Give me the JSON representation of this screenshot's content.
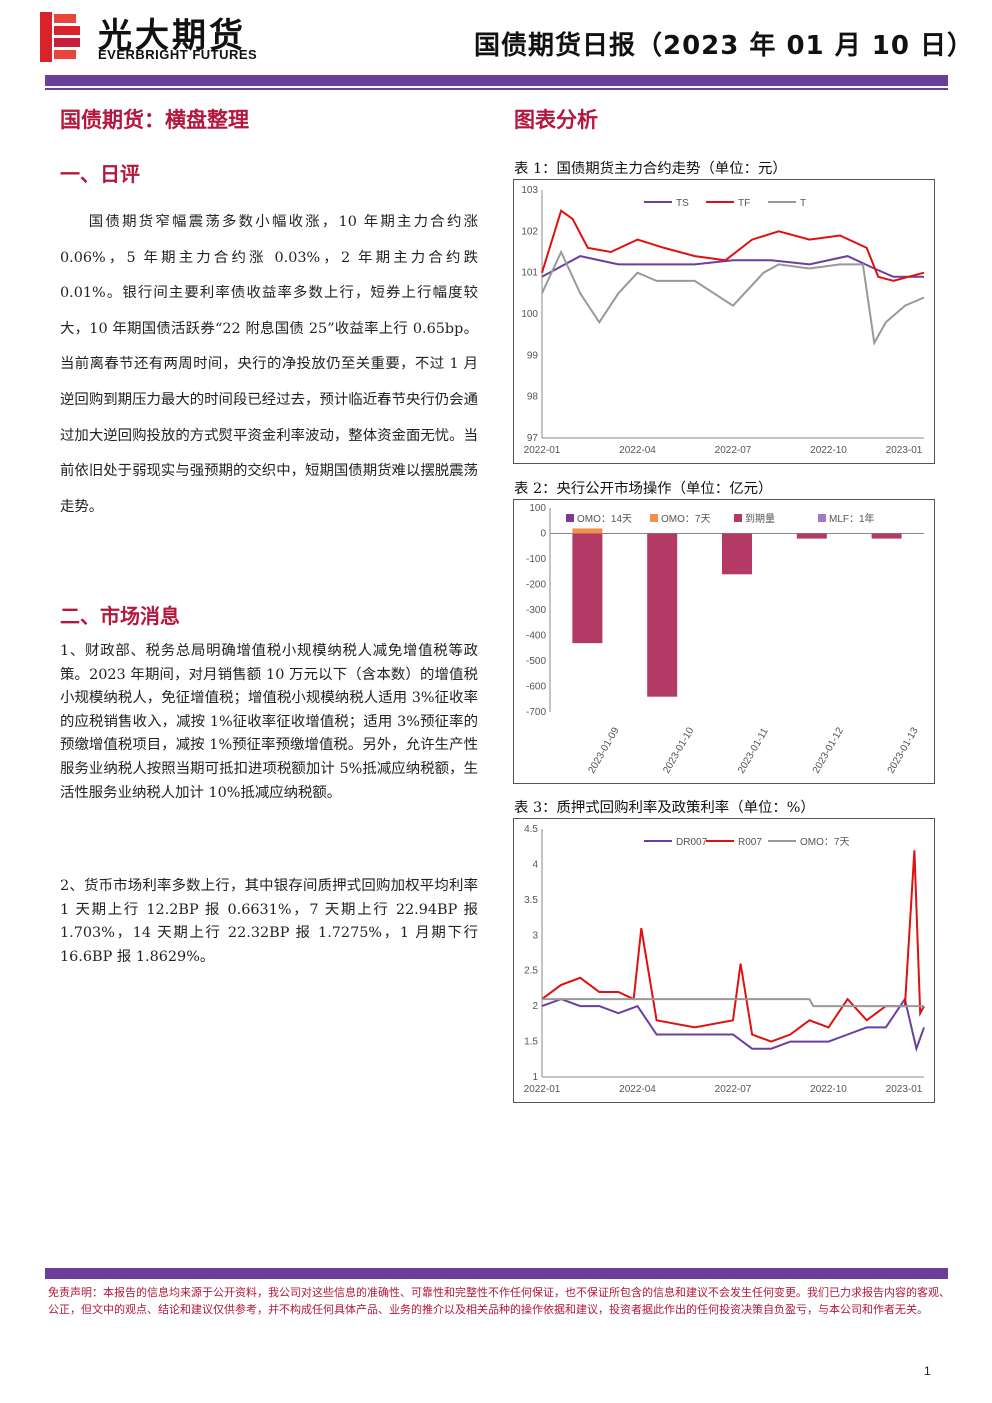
{
  "header": {
    "logo_cn": "光大期货",
    "logo_en": "EVERBRIGHT FUTURES",
    "report_title": "国债期货日报（2023 年 01 月 10 日）"
  },
  "main_title": "国债期货：横盘整理",
  "section1": {
    "title": "一、日评",
    "text": "国债期货窄幅震荡多数小幅收涨，10 年期主力合约涨 0.06%，5 年期主力合约涨 0.03%，2 年期主力合约跌 0.01%。银行间主要利率债收益率多数上行，短券上行幅度较大，10 年期国债活跃券“22 附息国债 25”收益率上行 0.65bp。当前离春节还有两周时间，央行的净投放仍至关重要，不过 1 月逆回购到期压力最大的时间段已经过去，预计临近春节央行仍会通过加大逆回购投放的方式熨平资金利率波动，整体资金面无忧。当前依旧处于弱现实与强预期的交织中，短期国债期货难以摆脱震荡走势。"
  },
  "section2": {
    "title": "二、市场消息",
    "item1": "1、财政部、税务总局明确增值税小规模纳税人减免增值税等政策。2023 年期间，对月销售额 10 万元以下（含本数）的增值税小规模纳税人，免征增值税；增值税小规模纳税人适用 3%征收率的应税销售收入，减按 1%征收率征收增值税；适用 3%预征率的预缴增值税项目，减按 1%预征率预缴增值税。另外，允许生产性服务业纳税人按照当期可抵扣进项税额加计 5%抵减应纳税额，生活性服务业纳税人加计 10%抵减应纳税额。",
    "item2": "2、货币市场利率多数上行，其中银存间质押式回购加权平均利率 1 天期上行 12.2BP 报 0.6631%，7 天期上行 22.94BP 报 1.703%，14 天期上行 22.32BP 报 1.7275%，1 月期下行 16.6BP 报 1.8629%。"
  },
  "analysis_title": "图表分析",
  "charts": {
    "chart1_caption": "表 1：国债期货主力合约走势（单位：元）",
    "chart2_caption": "表 2：央行公开市场操作（单位：亿元）",
    "chart3_caption": "表 3：质押式回购利率及政策利率（单位：%）"
  },
  "chart_data": [
    {
      "type": "line",
      "ylim": [
        97,
        103
      ],
      "yticks": [
        97,
        98,
        99,
        100,
        101,
        102,
        103
      ],
      "xticks": [
        "2022-01",
        "2022-04",
        "2022-07",
        "2022-10",
        "2023-01"
      ],
      "series": [
        {
          "name": "TS",
          "color": "#6b3fa0",
          "x": [
            0.0,
            0.1,
            0.2,
            0.3,
            0.4,
            0.5,
            0.6,
            0.7,
            0.8,
            0.87,
            0.92,
            1.0
          ],
          "values": [
            100.9,
            101.4,
            101.2,
            101.2,
            101.2,
            101.3,
            101.3,
            101.2,
            101.4,
            101.1,
            100.9,
            100.9
          ]
        },
        {
          "name": "TF",
          "color": "#e01010",
          "x": [
            0.0,
            0.05,
            0.08,
            0.12,
            0.18,
            0.25,
            0.32,
            0.4,
            0.48,
            0.55,
            0.62,
            0.7,
            0.78,
            0.85,
            0.88,
            0.92,
            1.0
          ],
          "values": [
            101.0,
            102.5,
            102.3,
            101.6,
            101.5,
            101.8,
            101.6,
            101.4,
            101.3,
            101.8,
            102.0,
            101.8,
            101.9,
            101.6,
            100.9,
            100.8,
            101.0
          ]
        },
        {
          "name": "T",
          "color": "#999999",
          "x": [
            0.0,
            0.05,
            0.1,
            0.15,
            0.2,
            0.25,
            0.3,
            0.4,
            0.5,
            0.58,
            0.62,
            0.7,
            0.78,
            0.84,
            0.87,
            0.9,
            0.95,
            1.0
          ],
          "values": [
            100.5,
            101.5,
            100.5,
            99.8,
            100.5,
            101.0,
            100.8,
            100.8,
            100.2,
            101.0,
            101.2,
            101.1,
            101.2,
            101.2,
            99.3,
            99.8,
            100.2,
            100.4
          ]
        }
      ]
    },
    {
      "type": "bar",
      "ylim": [
        -700,
        100
      ],
      "yticks": [
        100,
        0,
        -100,
        -200,
        -300,
        -400,
        -500,
        -600,
        -700
      ],
      "categories": [
        "2023-01-09",
        "2023-01-10",
        "2023-01-11",
        "2023-01-12",
        "2023-01-13"
      ],
      "series": [
        {
          "name": "OMO：14天",
          "color": "#7b3a96",
          "values": [
            0,
            0,
            0,
            0,
            0
          ]
        },
        {
          "name": "OMO：7天",
          "color": "#f0904a",
          "values": [
            20,
            0,
            0,
            0,
            0
          ]
        },
        {
          "name": "到期量",
          "color": "#b23a64",
          "values": [
            -430,
            -640,
            -160,
            -20,
            -20
          ]
        },
        {
          "name": "MLF：1年",
          "color": "#a07cc0",
          "values": [
            0,
            0,
            0,
            0,
            0
          ]
        }
      ]
    },
    {
      "type": "line",
      "ylim": [
        1,
        4.5
      ],
      "yticks": [
        1,
        1.5,
        2,
        2.5,
        3,
        3.5,
        4,
        4.5
      ],
      "xticks": [
        "2022-01",
        "2022-04",
        "2022-07",
        "2022-10",
        "2023-01"
      ],
      "series": [
        {
          "name": "DR007",
          "color": "#6b3fa0",
          "x": [
            0.0,
            0.05,
            0.1,
            0.15,
            0.2,
            0.25,
            0.3,
            0.4,
            0.5,
            0.55,
            0.6,
            0.65,
            0.7,
            0.75,
            0.8,
            0.85,
            0.9,
            0.95,
            0.98,
            1.0
          ],
          "values": [
            2.0,
            2.1,
            2.0,
            2.0,
            1.9,
            2.0,
            1.6,
            1.6,
            1.6,
            1.4,
            1.4,
            1.5,
            1.5,
            1.5,
            1.6,
            1.7,
            1.7,
            2.1,
            1.4,
            1.7
          ]
        },
        {
          "name": "R007",
          "color": "#e01010",
          "x": [
            0.0,
            0.05,
            0.1,
            0.15,
            0.2,
            0.24,
            0.26,
            0.3,
            0.4,
            0.5,
            0.52,
            0.55,
            0.6,
            0.65,
            0.7,
            0.75,
            0.8,
            0.85,
            0.9,
            0.95,
            0.975,
            0.99,
            1.0
          ],
          "values": [
            2.1,
            2.3,
            2.4,
            2.2,
            2.2,
            2.1,
            3.1,
            1.8,
            1.7,
            1.8,
            2.6,
            1.6,
            1.5,
            1.6,
            1.8,
            1.7,
            2.1,
            1.8,
            2.0,
            2.0,
            4.2,
            1.9,
            2.0
          ]
        },
        {
          "name": "OMO：7天",
          "color": "#999999",
          "x": [
            0.0,
            0.7,
            0.71,
            1.0
          ],
          "values": [
            2.1,
            2.1,
            2.0,
            2.0
          ]
        }
      ]
    }
  ],
  "footer": {
    "disclaimer": "免责声明：本报告的信息均来源于公开资料，我公司对这些信息的准确性、可靠性和完整性不作任何保证，也不保证所包含的信息和建议不会发生任何变更。我们已力求报告内容的客观、公正，但文中的观点、结论和建议仅供参考，并不构成任何具体产品、业务的推介以及相关品种的操作依据和建议，投资者据此作出的任何投资决策自负盈亏，与本公司和作者无关。",
    "page_number": "1"
  },
  "colors": {
    "brand_purple": "#6b3f97",
    "heading_red": "#b4163c",
    "logo_red": "#d8232a"
  }
}
